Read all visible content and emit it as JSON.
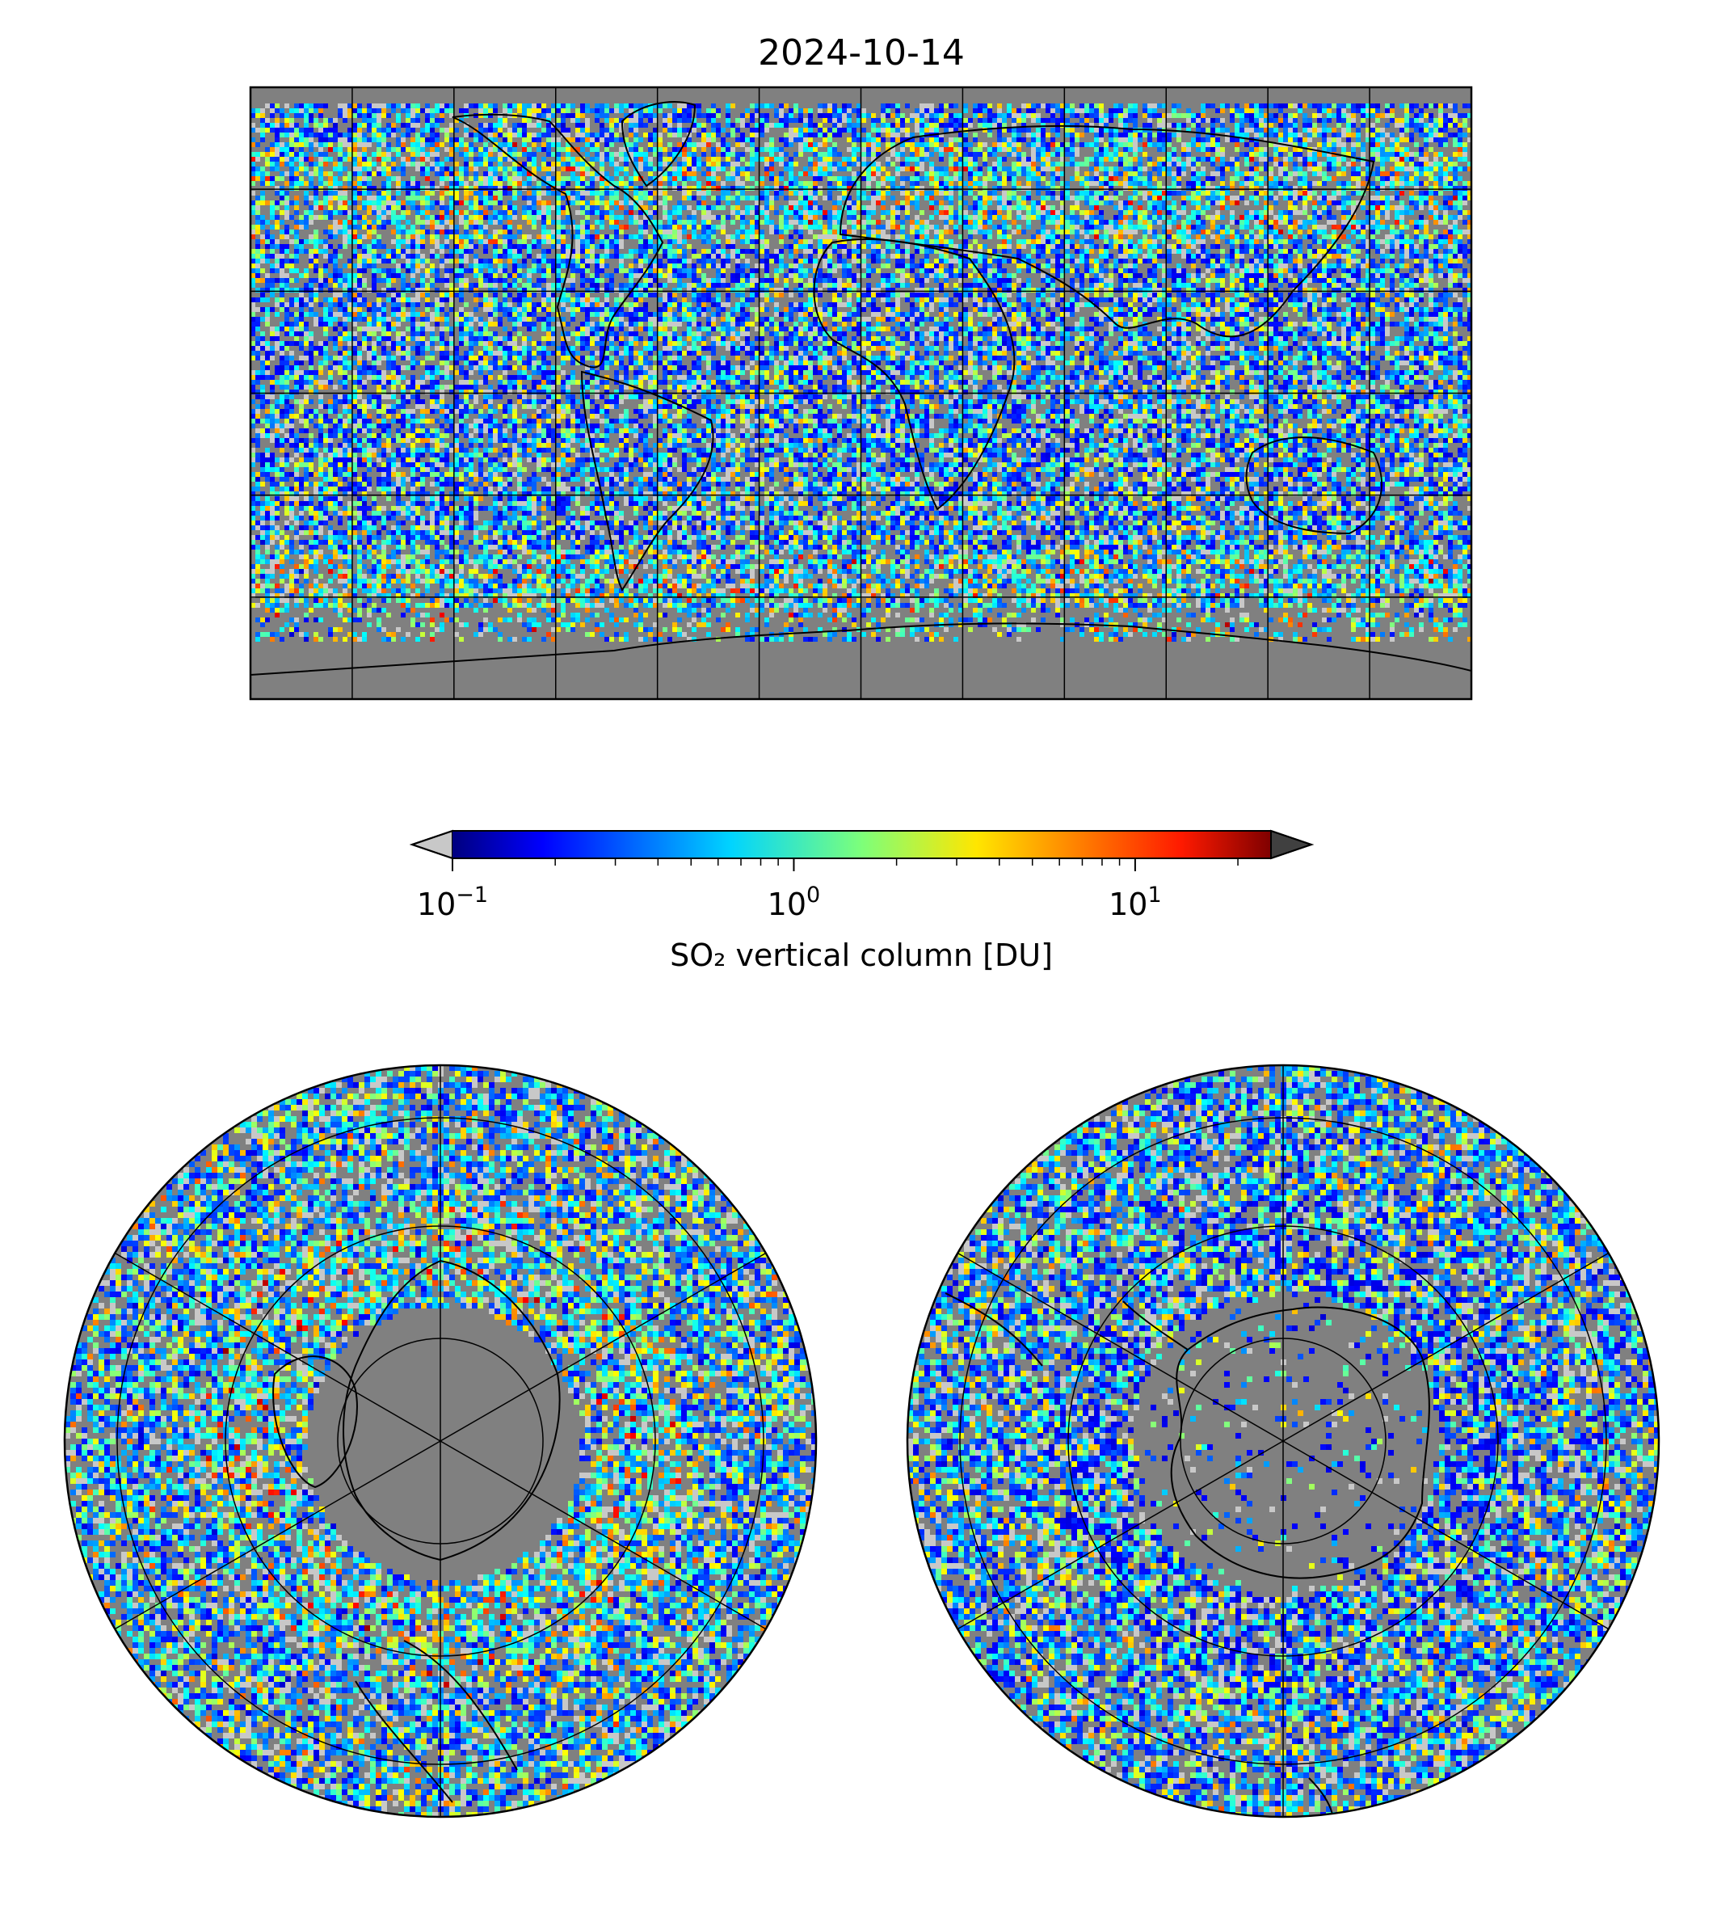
{
  "figure": {
    "title": "2024-10-14"
  },
  "colorbar": {
    "label": "SO₂ vertical column [DU]",
    "scale": "log",
    "range": [
      0.1,
      25
    ],
    "colormap": "jet",
    "extend": "both",
    "under_color": "#c8c8c8",
    "over_color": "#404040",
    "ticks": [
      {
        "value": 0.1,
        "base": "10",
        "exp": "−1"
      },
      {
        "value": 1,
        "base": "10",
        "exp": "0"
      },
      {
        "value": 10,
        "base": "10",
        "exp": "1"
      }
    ]
  },
  "maps": {
    "background_color": "#808080",
    "global": {
      "projection": "equirectangular",
      "lon_range": [
        -180,
        180
      ],
      "lat_range": [
        -90,
        90
      ],
      "meridian_step": 30,
      "parallel_step": 30
    },
    "north_polar": {
      "projection": "north-polar-stereographic",
      "meridian_step": 60
    },
    "south_polar": {
      "projection": "south-polar-stereographic",
      "meridian_step": 60
    }
  }
}
